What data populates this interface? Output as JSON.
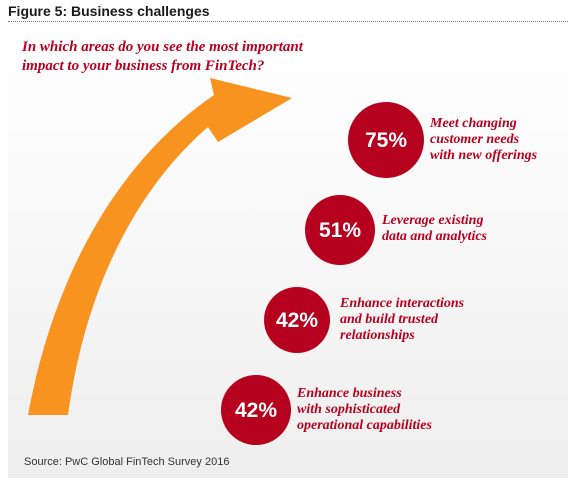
{
  "figure_title": "Figure 5: Business challenges",
  "question": "In which areas do you see the most important impact to your business from FinTech?",
  "source": "Source: PwC Global FinTech Survey 2016",
  "colors": {
    "bubble": "#b5001e",
    "label_text": "#b8001f",
    "arrow": "#f7931e"
  },
  "chart_data": {
    "type": "bar",
    "title": "Figure 5: Business challenges",
    "categories": [
      "Meet changing customer needs with new offerings",
      "Leverage existing data and analytics",
      "Enhance interactions and build trusted relationships",
      "Enhance business with sophisticated operational capabilities"
    ],
    "values": [
      75,
      51,
      42,
      42
    ],
    "value_labels": [
      "75%",
      "51%",
      "42%",
      "42%"
    ],
    "label_lines": [
      [
        "Meet changing",
        "customer needs",
        "with new offerings"
      ],
      [
        "Leverage existing",
        "data and analytics"
      ],
      [
        "Enhance interactions",
        "and build trusted",
        "relationships"
      ],
      [
        "Enhance business",
        "with sophisticated",
        "operational capabilities"
      ]
    ]
  }
}
